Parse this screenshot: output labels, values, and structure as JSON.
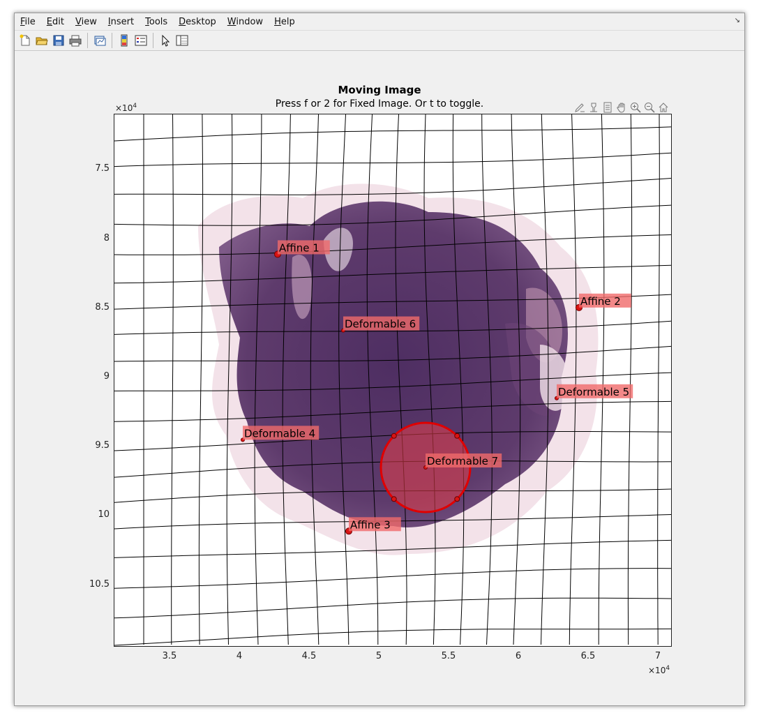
{
  "menu": {
    "items": [
      {
        "key": "F",
        "rest": "ile"
      },
      {
        "key": "E",
        "rest": "dit"
      },
      {
        "key": "V",
        "rest": "iew"
      },
      {
        "key": "I",
        "rest": "nsert"
      },
      {
        "key": "T",
        "rest": "ools"
      },
      {
        "key": "D",
        "rest": "esktop"
      },
      {
        "key": "W",
        "rest": "indow"
      },
      {
        "key": "H",
        "rest": "elp"
      }
    ],
    "corner_icon": "↘"
  },
  "toolbar": {
    "icons": [
      "new-figure-icon",
      "open-icon",
      "save-icon",
      "print-icon",
      "link-plot-icon",
      "colorbar-icon",
      "legend-icon",
      "edit-plot-icon",
      "property-inspector-icon"
    ]
  },
  "axes_toolbar": {
    "icons": [
      "brush-icon",
      "data-tips-icon",
      "restore-icon",
      "pan-icon",
      "zoom-in-icon",
      "zoom-out-icon",
      "home-icon"
    ]
  },
  "figure": {
    "title": "Moving Image",
    "subtitle": "Press f or 2 for Fixed Image. Or t to toggle."
  },
  "axes": {
    "y_ticks": [
      "7.5",
      "8",
      "8.5",
      "9",
      "9.5",
      "10",
      "10.5"
    ],
    "x_ticks": [
      "3.5",
      "4",
      "4.5",
      "5",
      "5.5",
      "6",
      "6.5",
      "7"
    ],
    "x_multiplier_base": "×10",
    "x_multiplier_exp": "4",
    "y_multiplier_base": "×10",
    "y_multiplier_exp": "4",
    "x_range": [
      31000,
      71000
    ],
    "y_range": [
      71000,
      109500
    ],
    "y_reversed": true
  },
  "markers": [
    {
      "label": "Affine 1",
      "x": 42700,
      "y": 81100,
      "type": "affine"
    },
    {
      "label": "Affine 2",
      "x": 64300,
      "y": 84950,
      "type": "affine"
    },
    {
      "label": "Affine 3",
      "x": 47800,
      "y": 101100,
      "type": "affine"
    },
    {
      "label": "Deformable 4",
      "x": 40200,
      "y": 94500,
      "type": "deformable"
    },
    {
      "label": "Deformable 5",
      "x": 62700,
      "y": 91500,
      "type": "deformable"
    },
    {
      "label": "Deformable 6",
      "x": 47400,
      "y": 86600,
      "type": "deformable"
    },
    {
      "label": "Deformable 7",
      "x": 53300,
      "y": 96500,
      "type": "deformable"
    }
  ],
  "roi_circle": {
    "cx": 53300,
    "cy": 96500,
    "r": 3200
  },
  "colors": {
    "marker": "#d91414",
    "label_bg": "#f06a6a",
    "tissue": "#5f3a6a",
    "roi_fill": "#e8404a",
    "roi_stroke": "#e00000"
  }
}
